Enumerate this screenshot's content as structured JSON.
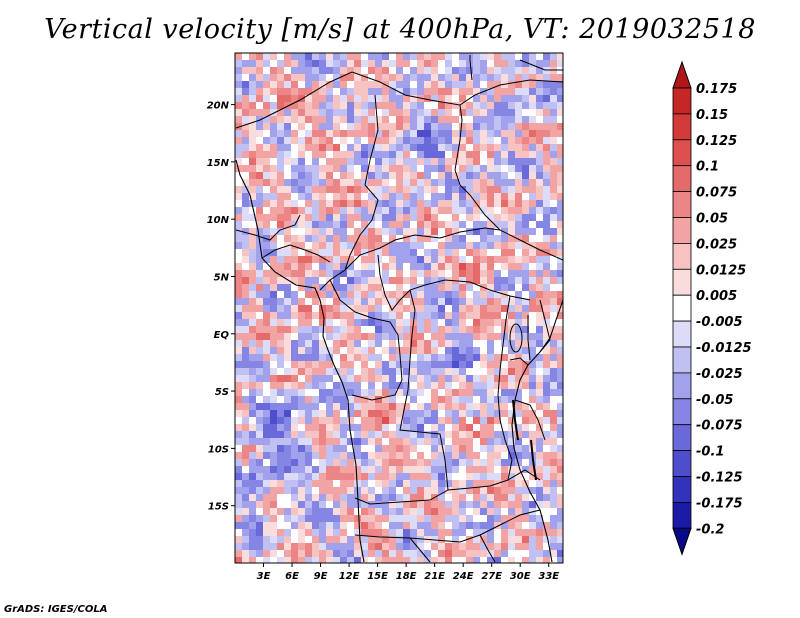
{
  "title": "Vertical velocity [m/s] at 400hPa, VT: 2019032518",
  "credit": "GrADS: IGES/COLA",
  "chart_data": {
    "type": "heatmap",
    "title": "Vertical velocity [m/s] at 400hPa, VT: 2019032518",
    "variable": "Vertical velocity",
    "units": "m/s",
    "level": "400hPa",
    "valid_time": "2019032518",
    "x_ticks": [
      "3E",
      "6E",
      "9E",
      "12E",
      "15E",
      "18E",
      "21E",
      "24E",
      "27E",
      "30E",
      "33E"
    ],
    "x_tick_values": [
      3,
      6,
      9,
      12,
      15,
      18,
      21,
      24,
      27,
      30,
      33
    ],
    "y_ticks": [
      "20N",
      "15N",
      "10N",
      "5N",
      "EQ",
      "5S",
      "10S",
      "15S"
    ],
    "y_tick_values": [
      20,
      15,
      10,
      5,
      0,
      -5,
      -10,
      -15
    ],
    "xlim": [
      0,
      34.5
    ],
    "ylim": [
      -20,
      24.5
    ],
    "colorbar": {
      "levels": [
        "0.175",
        "0.15",
        "0.125",
        "0.1",
        "0.075",
        "0.05",
        "0.025",
        "0.0125",
        "0.005",
        "-0.005",
        "-0.0125",
        "-0.025",
        "-0.05",
        "-0.075",
        "-0.1",
        "-0.125",
        "-0.175",
        "-0.2"
      ],
      "colors": [
        "#b01616",
        "#c52626",
        "#d33a3a",
        "#de5050",
        "#e56a6a",
        "#ec8686",
        "#f2a4a4",
        "#f7c2c2",
        "#fbdcdc",
        "#ffffff",
        "#dcdcf8",
        "#c0c0f3",
        "#a2a2ec",
        "#8585e4",
        "#6969da",
        "#4e4ecc",
        "#3232bb",
        "#1a1aa6",
        "#08088a"
      ]
    }
  }
}
